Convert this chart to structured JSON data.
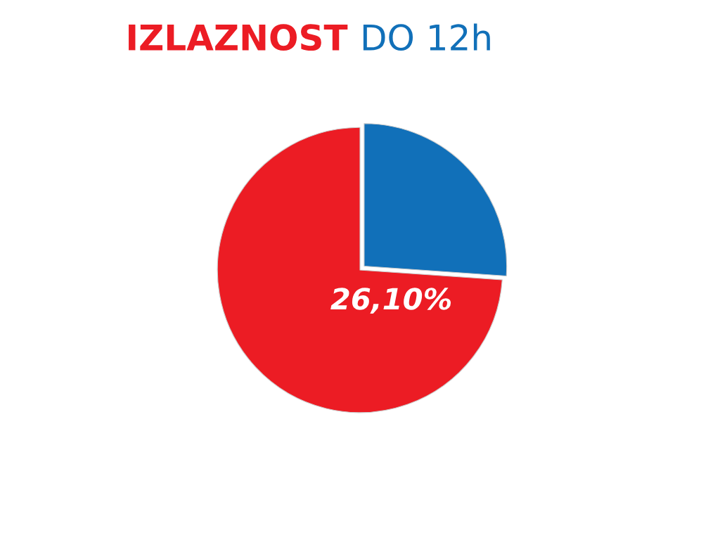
{
  "chart_data": {
    "type": "pie",
    "title": "IZLAZNOST DO 12h",
    "categories": [
      null,
      null
    ],
    "values": [
      26.1,
      73.9
    ],
    "colors": [
      "#1170b9",
      "#ec1c24"
    ],
    "annotations": [
      "26,10%"
    ],
    "legend": false
  }
}
